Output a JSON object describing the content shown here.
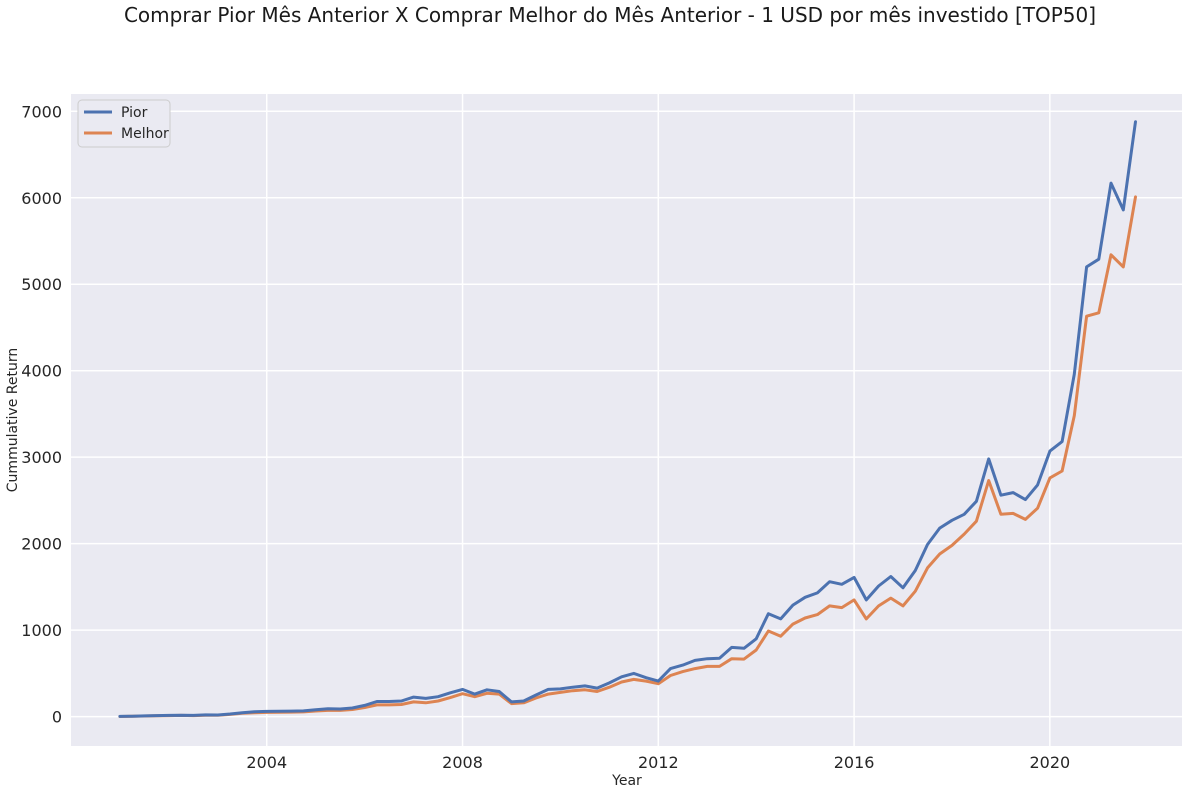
{
  "chart_data": {
    "type": "line",
    "title": "Comprar Pior Mês Anterior X Comprar Melhor do Mês Anterior - 1 USD por mês investido [TOP50]",
    "xlabel": "Year",
    "ylabel": "Cummulative Return",
    "xlim": [
      2000.0,
      2022.7
    ],
    "ylim": [
      -340,
      7200
    ],
    "x_ticks": [
      2004,
      2008,
      2012,
      2016,
      2020
    ],
    "y_ticks": [
      0,
      1000,
      2000,
      3000,
      4000,
      5000,
      6000,
      7000
    ],
    "grid": true,
    "legend_position": "top-left",
    "x": [
      2001.0,
      2001.25,
      2001.5,
      2001.75,
      2002.0,
      2002.25,
      2002.5,
      2002.75,
      2003.0,
      2003.25,
      2003.5,
      2003.75,
      2004.0,
      2004.25,
      2004.5,
      2004.75,
      2005.0,
      2005.25,
      2005.5,
      2005.75,
      2006.0,
      2006.25,
      2006.5,
      2006.75,
      2007.0,
      2007.25,
      2007.5,
      2007.75,
      2008.0,
      2008.25,
      2008.5,
      2008.75,
      2009.0,
      2009.25,
      2009.5,
      2009.75,
      2010.0,
      2010.25,
      2010.5,
      2010.75,
      2011.0,
      2011.25,
      2011.5,
      2011.75,
      2012.0,
      2012.25,
      2012.5,
      2012.75,
      2013.0,
      2013.25,
      2013.5,
      2013.75,
      2014.0,
      2014.25,
      2014.5,
      2014.75,
      2015.0,
      2015.25,
      2015.5,
      2015.75,
      2016.0,
      2016.25,
      2016.5,
      2016.75,
      2017.0,
      2017.25,
      2017.5,
      2017.75,
      2018.0,
      2018.25,
      2018.5,
      2018.75,
      2019.0,
      2019.25,
      2019.5,
      2019.75,
      2020.0,
      2020.25,
      2020.5,
      2020.75,
      2021.0,
      2021.25,
      2021.5
    ],
    "series": [
      {
        "name": "Pior",
        "color": "#4c72b0",
        "values": [
          2,
          5,
          8,
          12,
          14,
          16,
          14,
          20,
          18,
          30,
          45,
          55,
          60,
          62,
          64,
          66,
          80,
          90,
          88,
          100,
          130,
          175,
          175,
          180,
          225,
          210,
          230,
          275,
          315,
          260,
          310,
          290,
          170,
          180,
          250,
          315,
          320,
          340,
          355,
          330,
          390,
          460,
          500,
          450,
          410,
          555,
          595,
          650,
          670,
          675,
          800,
          790,
          900,
          1190,
          1130,
          1290,
          1380,
          1430,
          1560,
          1530,
          1610,
          1350,
          1510,
          1620,
          1490,
          1690,
          1990,
          2180,
          2270,
          2340,
          2490,
          2980,
          2560,
          2590,
          2510,
          2680,
          3070,
          3180,
          3960,
          5200,
          5290,
          6170,
          5860
        ]
      },
      {
        "name": "Melhor",
        "color": "#dd8452",
        "values": [
          1,
          4,
          7,
          10,
          12,
          14,
          12,
          16,
          15,
          25,
          38,
          45,
          48,
          50,
          52,
          54,
          65,
          72,
          72,
          82,
          105,
          135,
          135,
          140,
          170,
          160,
          180,
          220,
          265,
          230,
          270,
          260,
          150,
          160,
          215,
          260,
          280,
          300,
          310,
          290,
          340,
          400,
          430,
          410,
          380,
          475,
          520,
          555,
          580,
          580,
          670,
          665,
          770,
          990,
          930,
          1070,
          1140,
          1180,
          1280,
          1260,
          1350,
          1130,
          1280,
          1370,
          1280,
          1450,
          1720,
          1880,
          1980,
          2110,
          2260,
          2730,
          2340,
          2350,
          2280,
          2410,
          2760,
          2840,
          3480,
          4630,
          4670,
          5340,
          5200
        ]
      }
    ],
    "final_point": {
      "x": 2021.75,
      "pior": 6880,
      "melhor": 6010
    }
  }
}
